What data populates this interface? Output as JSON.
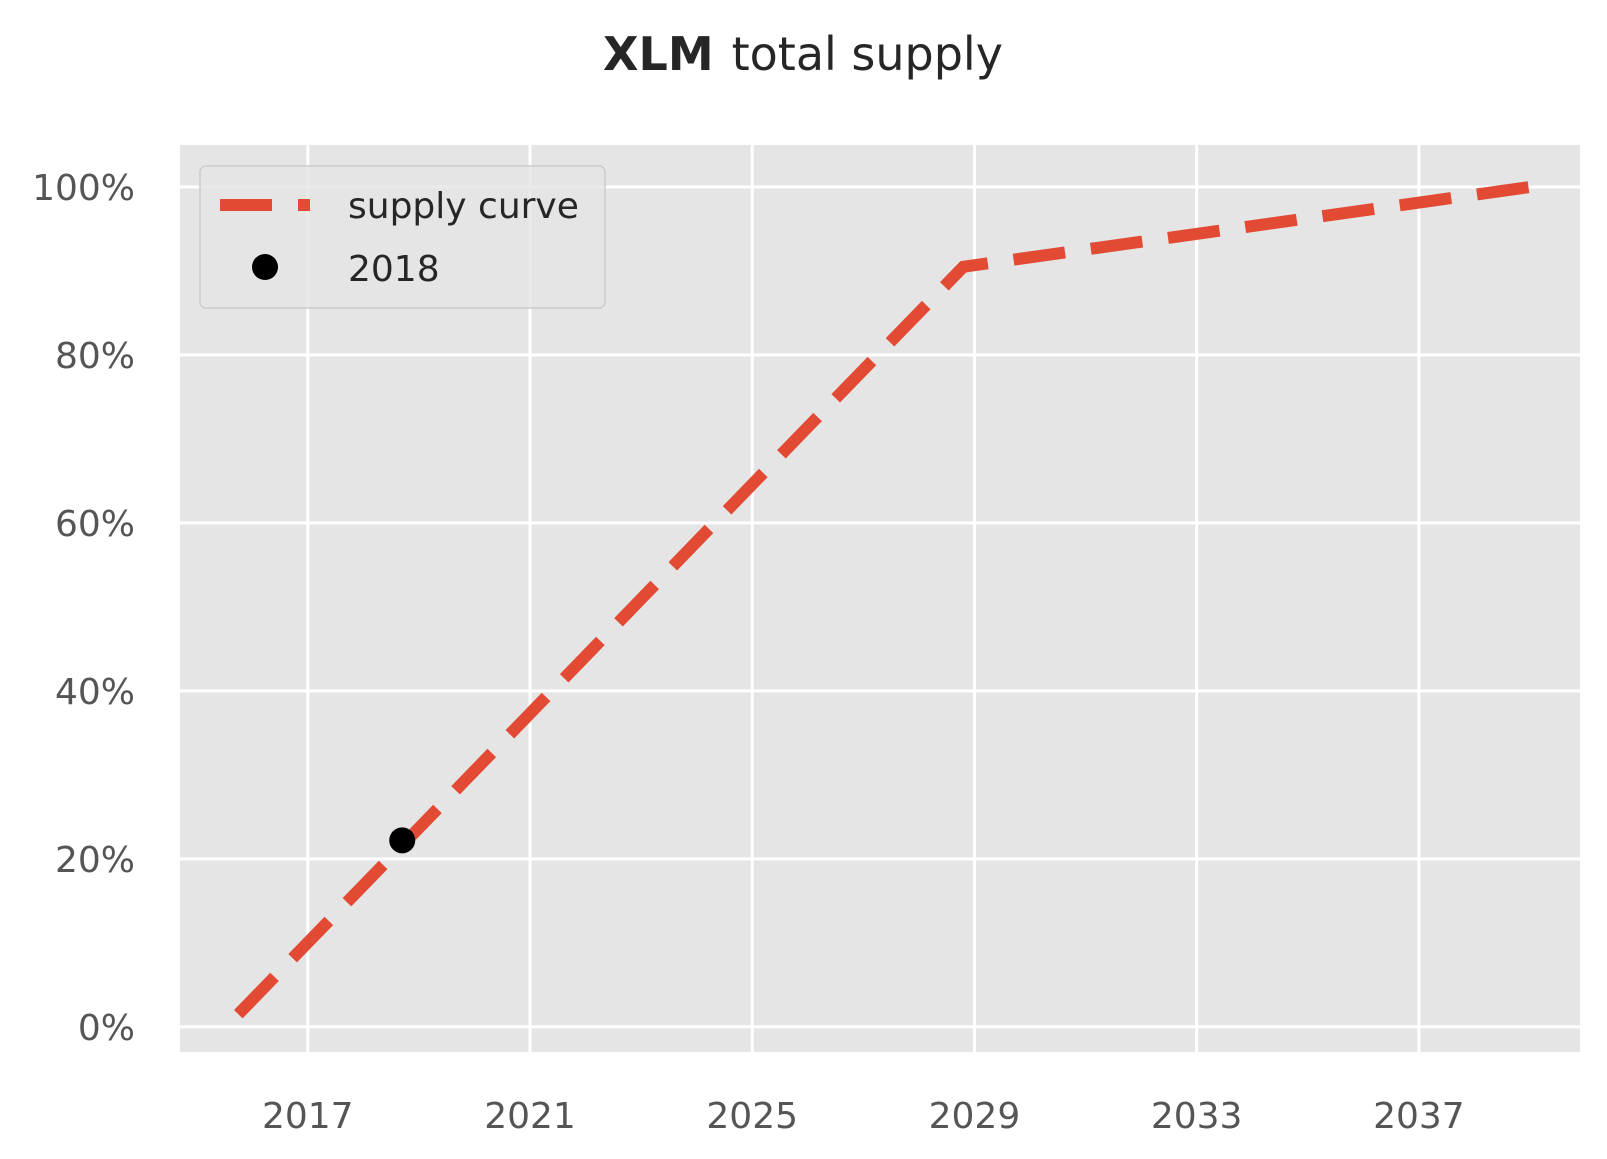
{
  "chart_data": {
    "type": "line",
    "title_bold": "XLM",
    "title_rest": "total supply",
    "xlabel": "",
    "ylabel": "",
    "x_ticks": [
      2017,
      2021,
      2025,
      2029,
      2033,
      2037
    ],
    "y_ticks": [
      0,
      20,
      40,
      60,
      80,
      100
    ],
    "y_tick_labels": [
      "0%",
      "20%",
      "40%",
      "60%",
      "80%",
      "100%"
    ],
    "xlim": [
      2014.7,
      2039.9
    ],
    "ylim": [
      -3,
      105
    ],
    "grid": true,
    "background": "#e5e5e5",
    "legend_position": "top-left",
    "series": [
      {
        "name": "supply curve",
        "style": "dashed",
        "color": "#e24a33",
        "x": [
          2015.75,
          2028.8,
          2039.0
        ],
        "y": [
          1.5,
          90.5,
          100.0
        ]
      },
      {
        "name": "2018",
        "style": "marker",
        "color": "#000000",
        "x": [
          2018.7
        ],
        "y": [
          22.2
        ]
      }
    ]
  }
}
